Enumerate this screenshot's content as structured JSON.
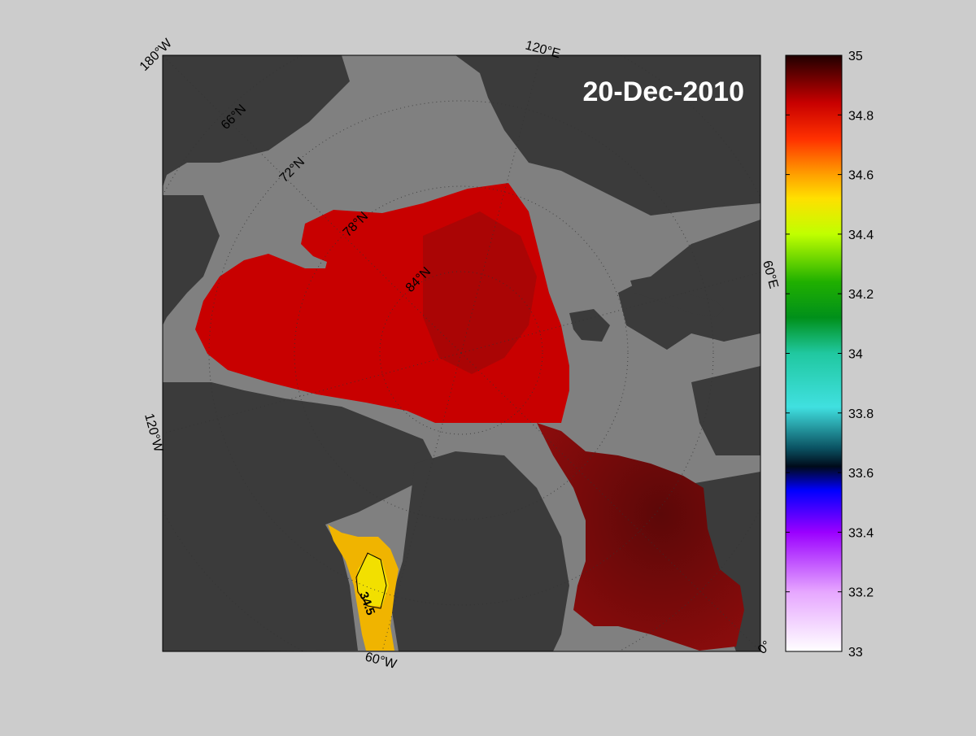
{
  "map": {
    "date_label": "20-Dec-2010",
    "longitude_labels": [
      "180°W",
      "120°E",
      "60°E",
      "0°",
      "60°W",
      "120°W"
    ],
    "latitude_labels": [
      "66°N",
      "72°N",
      "78°N",
      "84°N"
    ],
    "contour_label": "34.5"
  },
  "colorbar": {
    "ticks": [
      "35",
      "34.8",
      "34.6",
      "34.4",
      "34.2",
      "34",
      "33.8",
      "33.6",
      "33.4",
      "33.2",
      "33"
    ]
  },
  "colors": {
    "background": "#cccccc",
    "ocean": "#808080",
    "land": "#3b3b3b",
    "salinity_high": "#c80000",
    "salinity_highest": "#7a0a0a",
    "salinity_mid": "#f0c000"
  }
}
